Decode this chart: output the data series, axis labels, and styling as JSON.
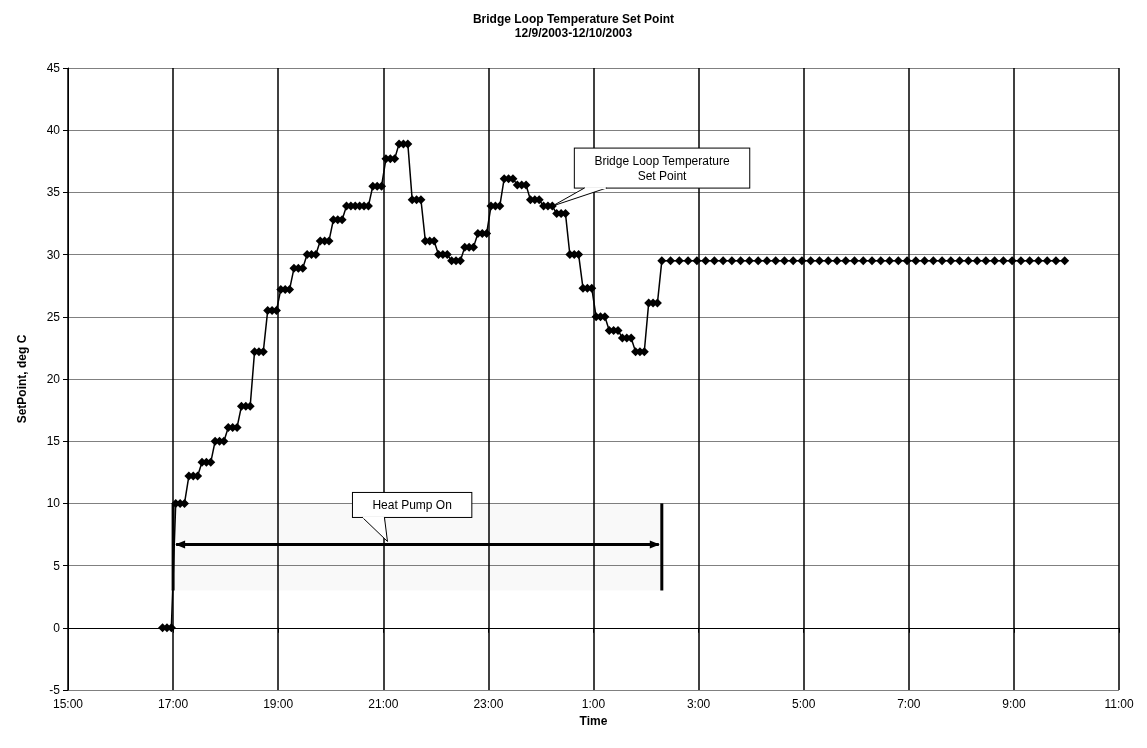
{
  "chart_data": {
    "type": "line",
    "title": "Bridge Loop Temperature Set Point",
    "subtitle": "12/9/2003-12/10/2003",
    "xlabel": "Time",
    "ylabel": "SetPoint, deg C",
    "x": [
      "2003-12-09T16:48",
      "2003-12-09T16:53",
      "2003-12-09T16:58",
      "2003-12-09T17:03",
      "2003-12-09T17:08",
      "2003-12-09T17:13",
      "2003-12-09T17:18",
      "2003-12-09T17:23",
      "2003-12-09T17:28",
      "2003-12-09T17:33",
      "2003-12-09T17:38",
      "2003-12-09T17:43",
      "2003-12-09T17:48",
      "2003-12-09T17:53",
      "2003-12-09T17:58",
      "2003-12-09T18:03",
      "2003-12-09T18:08",
      "2003-12-09T18:13",
      "2003-12-09T18:18",
      "2003-12-09T18:23",
      "2003-12-09T18:28",
      "2003-12-09T18:33",
      "2003-12-09T18:38",
      "2003-12-09T18:43",
      "2003-12-09T18:48",
      "2003-12-09T18:53",
      "2003-12-09T18:58",
      "2003-12-09T19:03",
      "2003-12-09T19:08",
      "2003-12-09T19:13",
      "2003-12-09T19:18",
      "2003-12-09T19:23",
      "2003-12-09T19:28",
      "2003-12-09T19:33",
      "2003-12-09T19:38",
      "2003-12-09T19:43",
      "2003-12-09T19:48",
      "2003-12-09T19:53",
      "2003-12-09T19:58",
      "2003-12-09T20:03",
      "2003-12-09T20:08",
      "2003-12-09T20:13",
      "2003-12-09T20:18",
      "2003-12-09T20:23",
      "2003-12-09T20:28",
      "2003-12-09T20:33",
      "2003-12-09T20:38",
      "2003-12-09T20:43",
      "2003-12-09T20:48",
      "2003-12-09T20:53",
      "2003-12-09T20:58",
      "2003-12-09T21:03",
      "2003-12-09T21:08",
      "2003-12-09T21:13",
      "2003-12-09T21:18",
      "2003-12-09T21:23",
      "2003-12-09T21:28",
      "2003-12-09T21:33",
      "2003-12-09T21:38",
      "2003-12-09T21:43",
      "2003-12-09T21:48",
      "2003-12-09T21:53",
      "2003-12-09T21:58",
      "2003-12-09T22:03",
      "2003-12-09T22:08",
      "2003-12-09T22:13",
      "2003-12-09T22:18",
      "2003-12-09T22:23",
      "2003-12-09T22:28",
      "2003-12-09T22:33",
      "2003-12-09T22:38",
      "2003-12-09T22:43",
      "2003-12-09T22:48",
      "2003-12-09T22:53",
      "2003-12-09T22:58",
      "2003-12-09T23:03",
      "2003-12-09T23:08",
      "2003-12-09T23:13",
      "2003-12-09T23:18",
      "2003-12-09T23:23",
      "2003-12-09T23:28",
      "2003-12-09T23:33",
      "2003-12-09T23:38",
      "2003-12-09T23:43",
      "2003-12-09T23:48",
      "2003-12-09T23:53",
      "2003-12-09T23:58",
      "2003-12-10T00:03",
      "2003-12-10T00:08",
      "2003-12-10T00:13",
      "2003-12-10T00:18",
      "2003-12-10T00:23",
      "2003-12-10T00:28",
      "2003-12-10T00:33",
      "2003-12-10T00:38",
      "2003-12-10T00:43",
      "2003-12-10T00:48",
      "2003-12-10T00:53",
      "2003-12-10T00:58",
      "2003-12-10T01:03",
      "2003-12-10T01:08",
      "2003-12-10T01:13",
      "2003-12-10T01:18",
      "2003-12-10T01:23",
      "2003-12-10T01:28",
      "2003-12-10T01:33",
      "2003-12-10T01:38",
      "2003-12-10T01:43",
      "2003-12-10T01:48",
      "2003-12-10T01:53",
      "2003-12-10T01:58",
      "2003-12-10T02:03",
      "2003-12-10T02:08",
      "2003-12-10T02:13",
      "2003-12-10T02:18",
      "2003-12-10T02:28",
      "2003-12-10T02:38",
      "2003-12-10T02:48",
      "2003-12-10T02:58",
      "2003-12-10T03:08",
      "2003-12-10T03:18",
      "2003-12-10T03:28",
      "2003-12-10T03:38",
      "2003-12-10T03:48",
      "2003-12-10T03:58",
      "2003-12-10T04:08",
      "2003-12-10T04:18",
      "2003-12-10T04:28",
      "2003-12-10T04:38",
      "2003-12-10T04:48",
      "2003-12-10T04:58",
      "2003-12-10T05:08",
      "2003-12-10T05:18",
      "2003-12-10T05:28",
      "2003-12-10T05:38",
      "2003-12-10T05:48",
      "2003-12-10T05:58",
      "2003-12-10T06:08",
      "2003-12-10T06:18",
      "2003-12-10T06:28",
      "2003-12-10T06:38",
      "2003-12-10T06:48",
      "2003-12-10T06:58",
      "2003-12-10T07:08",
      "2003-12-10T07:18",
      "2003-12-10T07:28",
      "2003-12-10T07:38",
      "2003-12-10T07:48",
      "2003-12-10T07:58",
      "2003-12-10T08:08",
      "2003-12-10T08:18",
      "2003-12-10T08:28",
      "2003-12-10T08:38",
      "2003-12-10T08:48",
      "2003-12-10T08:58",
      "2003-12-10T09:08",
      "2003-12-10T09:18",
      "2003-12-10T09:28",
      "2003-12-10T09:38",
      "2003-12-10T09:48",
      "2003-12-10T09:58"
    ],
    "series": [
      {
        "color": "#000000",
        "values": [
          0,
          0,
          0,
          10.0,
          10.0,
          10.0,
          12.2,
          12.2,
          12.2,
          13.3,
          13.3,
          13.3,
          15.0,
          15.0,
          15.0,
          16.1,
          16.1,
          16.1,
          17.8,
          17.8,
          17.8,
          22.2,
          22.2,
          22.2,
          25.5,
          25.5,
          25.5,
          27.2,
          27.2,
          27.2,
          28.9,
          28.9,
          28.9,
          30.0,
          30.0,
          30.0,
          31.1,
          31.1,
          31.1,
          32.8,
          32.8,
          32.8,
          33.9,
          33.9,
          33.9,
          33.9,
          33.9,
          33.9,
          35.5,
          35.5,
          35.5,
          37.7,
          37.7,
          37.7,
          38.9,
          38.9,
          38.9,
          34.4,
          34.4,
          34.4,
          31.1,
          31.1,
          31.1,
          30.0,
          30.0,
          30.0,
          29.5,
          29.5,
          29.5,
          30.6,
          30.6,
          30.6,
          31.7,
          31.7,
          31.7,
          33.9,
          33.9,
          33.9,
          36.1,
          36.1,
          36.1,
          35.6,
          35.6,
          35.6,
          34.4,
          34.4,
          34.4,
          33.9,
          33.9,
          33.9,
          33.3,
          33.3,
          33.3,
          30.0,
          30.0,
          30.0,
          27.3,
          27.3,
          27.3,
          25.0,
          25.0,
          25.0,
          23.9,
          23.9,
          23.9,
          23.3,
          23.3,
          23.3,
          22.2,
          22.2,
          22.2,
          26.1,
          26.1,
          26.1,
          29.5,
          29.5,
          29.5,
          29.5,
          29.5,
          29.5,
          29.5,
          29.5,
          29.5,
          29.5,
          29.5,
          29.5,
          29.5,
          29.5,
          29.5,
          29.5,
          29.5,
          29.5,
          29.5,
          29.5,
          29.5,
          29.5,
          29.5,
          29.5,
          29.5,
          29.5,
          29.5,
          29.5,
          29.5,
          29.5,
          29.5,
          29.5,
          29.5,
          29.5,
          29.5,
          29.5,
          29.5,
          29.5,
          29.5,
          29.5,
          29.5,
          29.5,
          29.5,
          29.5,
          29.5,
          29.5,
          29.5
        ]
      }
    ],
    "xlim": [
      "2003-12-09T15:00",
      "2003-12-10T11:00"
    ],
    "xticks": [
      {
        "value": "2003-12-09T15:00",
        "label": "15:00"
      },
      {
        "value": "2003-12-09T17:00",
        "label": "17:00"
      },
      {
        "value": "2003-12-09T19:00",
        "label": "19:00"
      },
      {
        "value": "2003-12-09T21:00",
        "label": "21:00"
      },
      {
        "value": "2003-12-09T23:00",
        "label": "23:00"
      },
      {
        "value": "2003-12-10T01:00",
        "label": "1:00"
      },
      {
        "value": "2003-12-10T03:00",
        "label": "3:00"
      },
      {
        "value": "2003-12-10T05:00",
        "label": "5:00"
      },
      {
        "value": "2003-12-10T07:00",
        "label": "7:00"
      },
      {
        "value": "2003-12-10T09:00",
        "label": "9:00"
      },
      {
        "value": "2003-12-10T11:00",
        "label": "11:00"
      }
    ],
    "ylim": [
      -5,
      45
    ],
    "yticks": [
      -5,
      0,
      5,
      10,
      15,
      20,
      25,
      30,
      35,
      40,
      45
    ],
    "grid": true,
    "marker": "diamond",
    "annotations": [
      {
        "text": "Bridge Loop Temperature Set Point",
        "x": "2003-12-10T00:13",
        "y": 33.9
      }
    ],
    "bands": [
      {
        "axis": "x",
        "from": "2003-12-09T17:00",
        "to": "2003-12-10T02:18",
        "label": "Heat Pump On",
        "color": "#000000"
      }
    ]
  }
}
